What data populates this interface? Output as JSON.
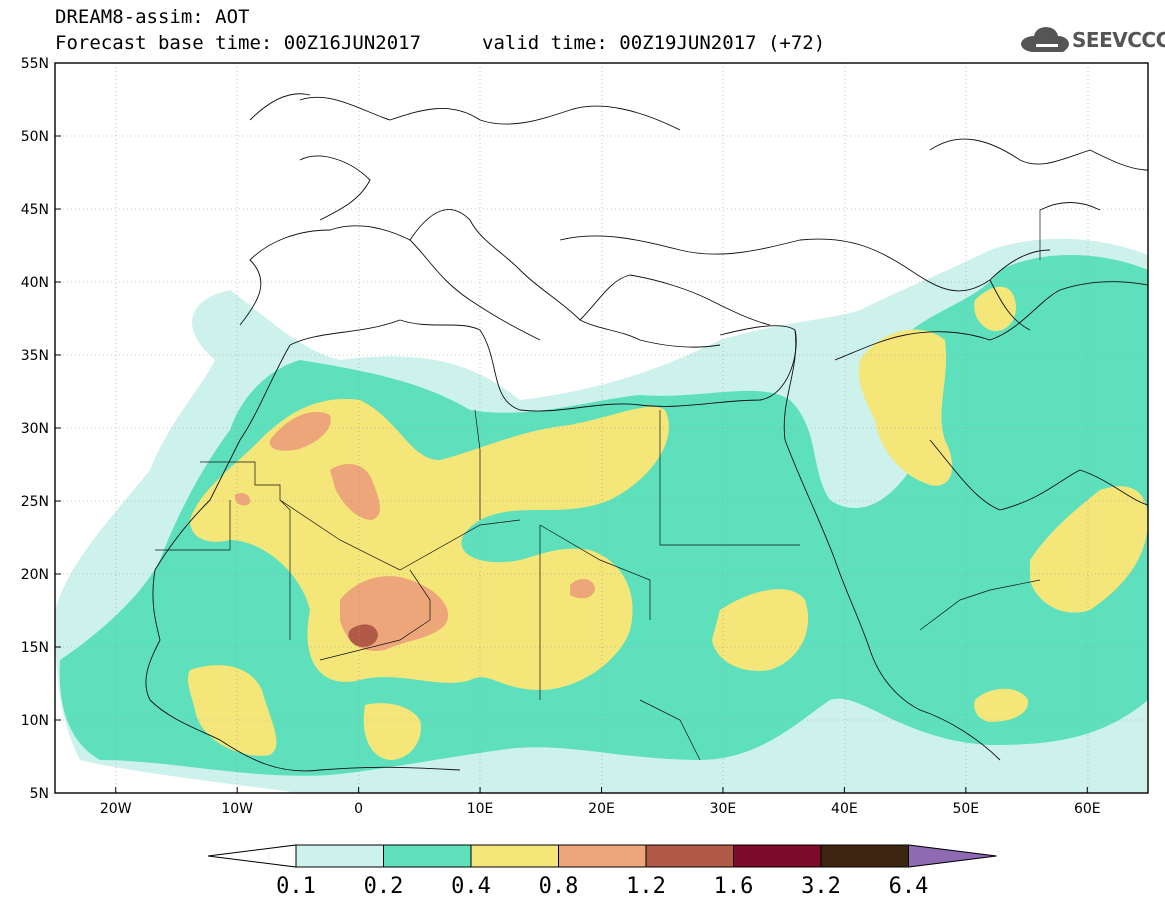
{
  "header": {
    "title_line1": "DREAM8-assim: AOT",
    "title_line2": "Forecast base time: 00Z16JUN2017",
    "valid_time": "valid time: 00Z19JUN2017 (+72)"
  },
  "logo": {
    "text": "SEEVCCC",
    "icon": "cloud-icon"
  },
  "map": {
    "lat_labels": [
      "55N",
      "50N",
      "45N",
      "40N",
      "35N",
      "30N",
      "25N",
      "20N",
      "15N",
      "10N",
      "5N"
    ],
    "lon_labels": [
      "20W",
      "10W",
      "0",
      "10E",
      "20E",
      "30E",
      "40E",
      "50E",
      "60E"
    ],
    "lat_range": [
      5,
      55
    ],
    "lon_range": [
      -25,
      65
    ]
  },
  "colorbar": {
    "labels": [
      "0.1",
      "0.2",
      "0.4",
      "0.8",
      "1.2",
      "1.6",
      "3.2",
      "6.4"
    ],
    "colors": [
      "#cdf2ec",
      "#5ee0bd",
      "#f5e67a",
      "#eda679",
      "#b25a48",
      "#7d0b29",
      "#3d2511"
    ],
    "low_color": "#ffffff",
    "high_color": "#8e6ab3"
  },
  "levels": {
    "c1": "#cdf2ec",
    "c2": "#5ee0bd",
    "c3": "#f5e67a",
    "c4": "#eda679",
    "c5": "#b25a48",
    "c6": "#7d0b29"
  }
}
